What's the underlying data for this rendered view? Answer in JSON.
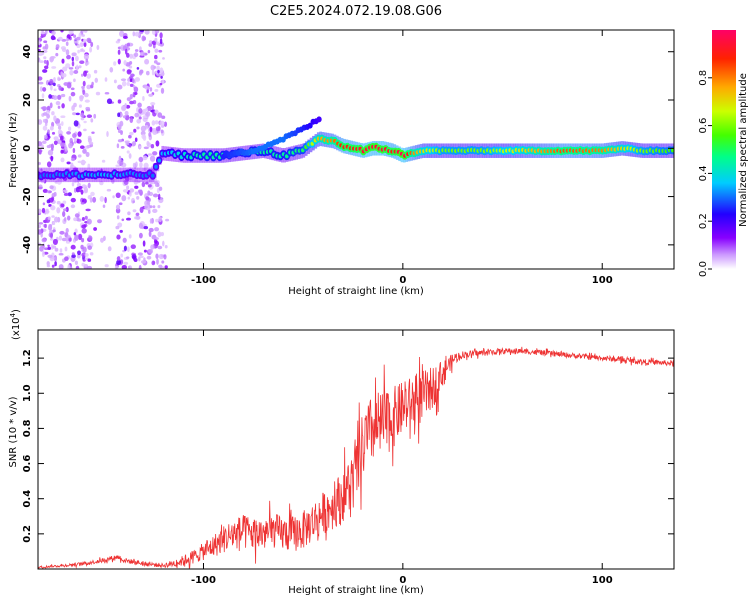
{
  "figure_title": "C2E5.2024.072.19.08.G06",
  "chart_data": [
    {
      "type": "heatmap",
      "title": "C2E5.2024.072.19.08.G06",
      "xlabel": "Height of straight line (km)",
      "ylabel": "Frequency (Hz)",
      "xlim": [
        -183,
        136
      ],
      "ylim": [
        -50,
        49
      ],
      "xticks": [
        -100,
        0,
        100
      ],
      "yticks": [
        -40,
        -20,
        0,
        20,
        40
      ],
      "xtick_labels": [
        "-100",
        "0",
        "100"
      ],
      "ytick_labels": [
        "-40",
        "-20",
        "0",
        "20",
        "40"
      ],
      "colorbar": {
        "label": "Normalized spectral amplitude",
        "range": [
          0,
          1
        ],
        "ticks": [
          0.0,
          0.2,
          0.4,
          0.6,
          0.8
        ],
        "tick_labels": [
          "0.0",
          "0.2",
          "0.4",
          "0.6",
          "0.8"
        ],
        "colors": [
          "#ffffff",
          "#cc99ff",
          "#8800ff",
          "#2200ff",
          "#00ccff",
          "#00ff88",
          "#44ff00",
          "#ccff00",
          "#ffaa00",
          "#ff2200",
          "#ff0066"
        ]
      },
      "ridge": {
        "x": [
          -183,
          -150,
          -125,
          -121,
          -110,
          -100,
          -90,
          -80,
          -70,
          -60,
          -50,
          -42,
          -35,
          -30,
          -25,
          -20,
          -15,
          -10,
          -5,
          0,
          5,
          10,
          20,
          40,
          60,
          80,
          100,
          110,
          120,
          136
        ],
        "frequency": [
          -11,
          -11,
          -11,
          -2,
          -3,
          -3,
          -3,
          -2,
          -1,
          -3,
          -1,
          4,
          3,
          1,
          0,
          -1,
          0,
          0,
          -1,
          -3,
          -2,
          -1,
          -1,
          -1,
          -1,
          -1,
          -1,
          0,
          -1,
          -1
        ],
        "amplitude": [
          0.3,
          0.35,
          0.3,
          0.35,
          0.4,
          0.45,
          0.45,
          0.45,
          0.45,
          0.45,
          0.5,
          0.75,
          0.8,
          0.9,
          0.9,
          0.95,
          0.95,
          0.95,
          0.9,
          1.0,
          0.8,
          0.7,
          0.6,
          0.6,
          0.7,
          0.85,
          0.8,
          0.7,
          0.6,
          0.55
        ]
      },
      "secondary_ridge": {
        "x": [
          -90,
          -75,
          -60,
          -50,
          -42
        ],
        "frequency": [
          -3,
          -1,
          4,
          8,
          12
        ],
        "amplitude": [
          0.25,
          0.3,
          0.3,
          0.25,
          0.2
        ]
      }
    },
    {
      "type": "line",
      "xlabel": "Height of straight line (km)",
      "ylabel": "SNR (10 * v/v)",
      "y_multiplier_label": "(x10",
      "y_multiplier_exponent": "4",
      "xlim": [
        -183,
        136
      ],
      "ylim": [
        0,
        1.36
      ],
      "xticks": [
        -100,
        0,
        100
      ],
      "yticks": [
        0.2,
        0.4,
        0.6,
        0.8,
        1.0,
        1.2
      ],
      "xtick_labels": [
        "-100",
        "0",
        "100"
      ],
      "ytick_labels": [
        "0.2",
        "0.4",
        "0.6",
        "0.8",
        "1.0",
        "1.2"
      ],
      "color": "#ee3333",
      "series": [
        {
          "name": "SNR",
          "x": [
            -183,
            -170,
            -160,
            -150,
            -143,
            -140,
            -130,
            -120,
            -112,
            -105,
            -100,
            -95,
            -90,
            -85,
            -80,
            -75,
            -70,
            -65,
            -60,
            -55,
            -50,
            -45,
            -40,
            -35,
            -30,
            -25,
            -22,
            -20,
            -15,
            -10,
            -5,
            0,
            5,
            10,
            14,
            18,
            22,
            26,
            30,
            40,
            50,
            60,
            70,
            80,
            90,
            100,
            110,
            120,
            136
          ],
          "y": [
            0.01,
            0.02,
            0.03,
            0.05,
            0.07,
            0.05,
            0.03,
            0.02,
            0.04,
            0.07,
            0.1,
            0.13,
            0.17,
            0.2,
            0.21,
            0.2,
            0.2,
            0.22,
            0.2,
            0.2,
            0.22,
            0.27,
            0.32,
            0.36,
            0.42,
            0.5,
            0.6,
            0.7,
            0.8,
            0.82,
            0.86,
            0.92,
            0.95,
            0.98,
            1.02,
            1.08,
            1.15,
            1.2,
            1.22,
            1.23,
            1.24,
            1.24,
            1.23,
            1.22,
            1.21,
            1.2,
            1.19,
            1.18,
            1.17
          ]
        }
      ],
      "noise_amplitude": {
        "x": [
          -183,
          -160,
          -140,
          -120,
          -110,
          -100,
          -90,
          -80,
          -60,
          -40,
          -30,
          -20,
          -10,
          0,
          10,
          18,
          22,
          30,
          60,
          136
        ],
        "y": [
          0.005,
          0.01,
          0.015,
          0.012,
          0.03,
          0.05,
          0.08,
          0.1,
          0.1,
          0.12,
          0.15,
          0.2,
          0.2,
          0.15,
          0.15,
          0.1,
          0.05,
          0.02,
          0.015,
          0.015
        ]
      }
    }
  ]
}
